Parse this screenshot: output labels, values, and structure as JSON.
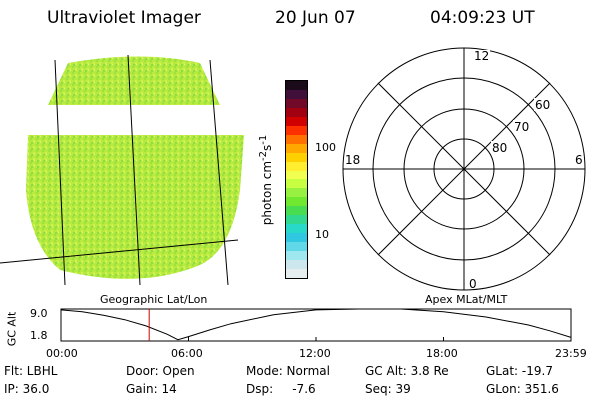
{
  "header": {
    "title": "Ultraviolet Imager",
    "date": "20 Jun 07",
    "time": "04:09:23 UT"
  },
  "colorbar": {
    "label": "photon cm",
    "label_sup1": "-2",
    "label_s": "s",
    "label_sup2": "-1",
    "ticks": [
      "100",
      "10"
    ],
    "colors": [
      "#1a0a1a",
      "#40103a",
      "#700a28",
      "#a00010",
      "#d00000",
      "#ff3000",
      "#ff7000",
      "#ffa800",
      "#ffd000",
      "#ffee30",
      "#f0ff50",
      "#c8ff40",
      "#98f040",
      "#70e830",
      "#48dc50",
      "#30d890",
      "#28d8c8",
      "#30c8e0",
      "#60d8e8",
      "#a0e8f0",
      "#cce8ee",
      "#e6eef0"
    ]
  },
  "polar": {
    "labels": {
      "top": "12",
      "left": "18",
      "right": "6",
      "bottom": "0",
      "lat60": "60",
      "lat70": "70",
      "lat80": "80"
    }
  },
  "plot": {
    "left_label": "Geographic Lat/Lon",
    "right_label": "Apex MLat/MLT",
    "ylabel": "GC Alt",
    "y_top": "9.0",
    "y_bottom": "1.8",
    "x_ticks": [
      "00:00",
      "06:00",
      "12:00",
      "18:00",
      "23:59"
    ]
  },
  "chart_data": {
    "type": "line",
    "xlabel": "",
    "ylabel": "GC Alt",
    "xlim": [
      0,
      24
    ],
    "ylim": [
      1.8,
      9.0
    ],
    "x_tick_labels": [
      "00:00",
      "06:00",
      "12:00",
      "18:00",
      "23:59"
    ],
    "y_tick_labels": [
      "9.0",
      "1.8"
    ],
    "series": [
      {
        "x": [
          0,
          1,
          2,
          3,
          4,
          5,
          5.5,
          6,
          7,
          8,
          10,
          12,
          14,
          15,
          16,
          18,
          20,
          22,
          23,
          24
        ],
        "y": [
          8.8,
          8.4,
          7.6,
          6.6,
          5.2,
          3.3,
          2.1,
          2.8,
          4.3,
          5.7,
          7.7,
          8.8,
          9.1,
          9.1,
          9.0,
          8.4,
          7.2,
          5.4,
          4.1,
          2.6
        ]
      }
    ],
    "marker_line_x": 4.15
  },
  "info": {
    "flt": "Flt: LBHL",
    "ip": "IP: 36.0",
    "door": "Door: Open",
    "gain": "Gain: 14",
    "mode": "Mode: Normal",
    "dsp": "Dsp:     -7.6",
    "gcalt": "GC Alt: 3.8 Re",
    "seq": "Seq: 39",
    "glat": "GLat: -19.7",
    "glon": "GLon: 351.6"
  }
}
